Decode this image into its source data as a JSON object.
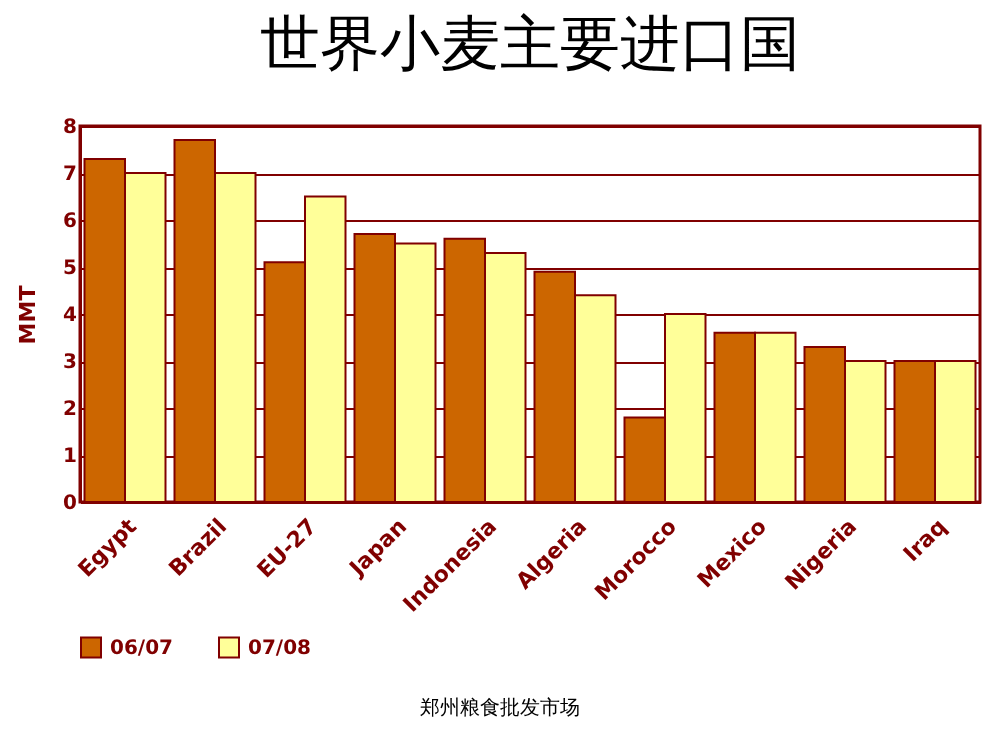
{
  "chart_data": {
    "type": "bar",
    "title": "世界小麦主要进口国",
    "ylabel": "MMT",
    "categories": [
      "Egypt",
      "Brazil",
      "EU-27",
      "Japan",
      "Indonesia",
      "Algeria",
      "Morocco",
      "Mexico",
      "Nigeria",
      "Iraq"
    ],
    "series": [
      {
        "name": "06/07",
        "color": "#cc6600",
        "values": [
          7.3,
          7.7,
          5.1,
          5.7,
          5.6,
          4.9,
          1.8,
          3.6,
          3.3,
          3.0
        ]
      },
      {
        "name": "07/08",
        "color": "#ffff99",
        "values": [
          7.0,
          7.0,
          6.5,
          5.5,
          5.3,
          4.4,
          4.0,
          3.6,
          3.0,
          3.0
        ]
      }
    ],
    "ylim": [
      0,
      8
    ],
    "yticks": [
      0,
      1,
      2,
      3,
      4,
      5,
      6,
      7,
      8
    ],
    "grid": "y",
    "legend": "bottom",
    "annotations": [
      "郑州粮食批发市场"
    ]
  }
}
